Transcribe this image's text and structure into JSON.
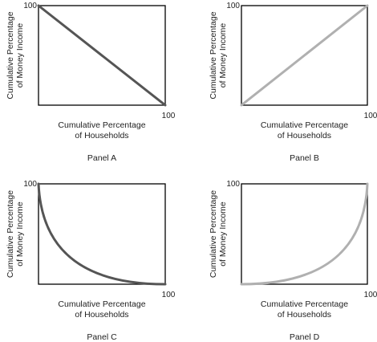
{
  "chart_data": [
    {
      "type": "line",
      "panel_label": "Panel A",
      "xlabel": [
        "Cumulative Percentage",
        "of Households"
      ],
      "ylabel": [
        "Cumulative Percentage",
        "of Money Income"
      ],
      "xlim": [
        0,
        100
      ],
      "ylim": [
        0,
        100
      ],
      "x_tick_label": "100",
      "y_tick_label": "100",
      "curve": "straight-descending",
      "line_color": "#555555",
      "series": [
        {
          "x": [
            0,
            100
          ],
          "y": [
            100,
            0
          ]
        }
      ]
    },
    {
      "type": "line",
      "panel_label": "Panel B",
      "xlabel": [
        "Cumulative Percentage",
        "of Households"
      ],
      "ylabel": [
        "Cumulative Percentage",
        "of Money Income"
      ],
      "xlim": [
        0,
        100
      ],
      "ylim": [
        0,
        100
      ],
      "x_tick_label": "100",
      "y_tick_label": "100",
      "curve": "straight-ascending",
      "line_color": "#b0b0b0",
      "series": [
        {
          "x": [
            0,
            100
          ],
          "y": [
            0,
            100
          ]
        }
      ]
    },
    {
      "type": "line",
      "panel_label": "Panel C",
      "xlabel": [
        "Cumulative Percentage",
        "of Households"
      ],
      "ylabel": [
        "Cumulative Percentage",
        "of Money Income"
      ],
      "xlim": [
        0,
        100
      ],
      "ylim": [
        0,
        100
      ],
      "x_tick_label": "100",
      "y_tick_label": "100",
      "curve": "convex-descending",
      "line_color": "#555555",
      "series": [
        {
          "x": [
            0,
            10,
            20,
            30,
            40,
            50,
            60,
            70,
            80,
            90,
            100
          ],
          "y": [
            100,
            66,
            44,
            29,
            18,
            11,
            6,
            3,
            1,
            0.3,
            0
          ]
        }
      ]
    },
    {
      "type": "line",
      "panel_label": "Panel D",
      "xlabel": [
        "Cumulative Percentage",
        "of Households"
      ],
      "ylabel": [
        "Cumulative Percentage",
        "of Money Income"
      ],
      "xlim": [
        0,
        100
      ],
      "ylim": [
        0,
        100
      ],
      "x_tick_label": "100",
      "y_tick_label": "100",
      "curve": "convex-ascending",
      "line_color": "#b0b0b0",
      "series": [
        {
          "x": [
            0,
            10,
            20,
            30,
            40,
            50,
            60,
            70,
            80,
            90,
            100
          ],
          "y": [
            0,
            0.3,
            1,
            3,
            6,
            11,
            18,
            29,
            44,
            66,
            100
          ]
        }
      ]
    }
  ]
}
